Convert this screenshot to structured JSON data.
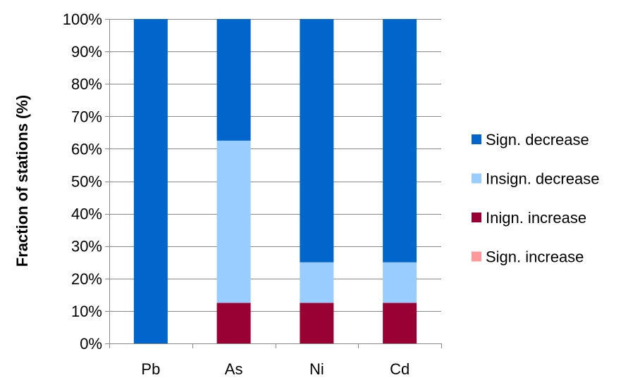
{
  "chart_data": {
    "type": "bar",
    "stacked": true,
    "normalized": true,
    "categories": [
      "Pb",
      "As",
      "Ni",
      "Cd"
    ],
    "series": [
      {
        "name": "Sign. increase",
        "color": "#ff9999",
        "values": [
          0,
          0,
          0,
          0
        ]
      },
      {
        "name": "Inign. increase",
        "color": "#990033",
        "values": [
          0,
          12.5,
          12.5,
          12.5
        ]
      },
      {
        "name": "Insign. decrease",
        "color": "#99ccff",
        "values": [
          0,
          50,
          12.5,
          12.5
        ]
      },
      {
        "name": "Sign. decrease",
        "color": "#0066cc",
        "values": [
          100,
          37.5,
          75,
          75
        ]
      }
    ],
    "legend_order": [
      "Sign. decrease",
      "Insign. decrease",
      "Inign. increase",
      "Sign. increase"
    ],
    "ylabel": "Fraction of stations (%)",
    "xlabel": "",
    "ylim": [
      0,
      100
    ],
    "yticks": [
      "0%",
      "10%",
      "20%",
      "30%",
      "40%",
      "50%",
      "60%",
      "70%",
      "80%",
      "90%",
      "100%"
    ],
    "grid": true,
    "legend_position": "right"
  }
}
